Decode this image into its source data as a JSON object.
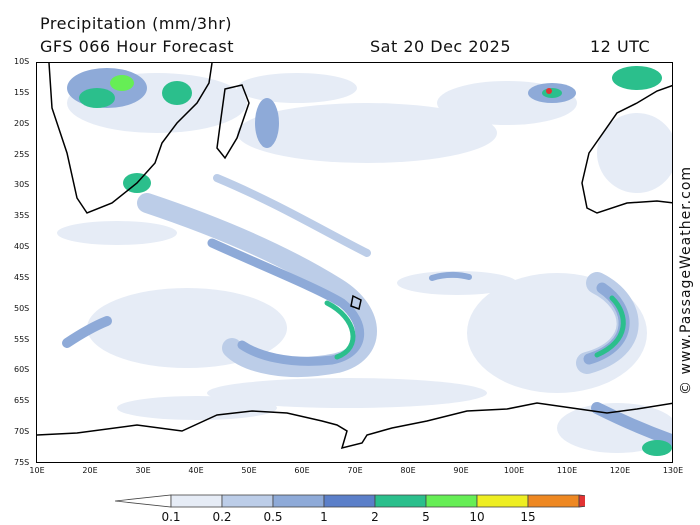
{
  "header": {
    "title": "Precipitation (mm/3hr)",
    "model": "GFS 066 Hour Forecast",
    "date": "Sat 20 Dec 2025",
    "time": "12 UTC"
  },
  "credit": "© www.PassageWeather.com",
  "map": {
    "lat_labels": [
      "10S",
      "15S",
      "20S",
      "25S",
      "30S",
      "35S",
      "40S",
      "45S",
      "50S",
      "55S",
      "60S",
      "65S",
      "70S",
      "75S"
    ],
    "lon_labels": [
      "10E",
      "20E",
      "30E",
      "40E",
      "50E",
      "60E",
      "70E",
      "80E",
      "90E",
      "100E",
      "110E",
      "120E",
      "130E"
    ],
    "colors": {
      "land_outline": "#000000",
      "band_0_1": "#e6ecf6",
      "band_0_2": "#bccde8",
      "band_0_5": "#8eaad8",
      "band_1": "#5b7fc9",
      "band_2": "#2bbf8c",
      "band_5": "#66ee55",
      "band_10": "#eeee22",
      "band_15": "#ee8822",
      "band_max": "#e23333"
    }
  },
  "legend": {
    "labels": [
      "0.1",
      "0.2",
      "0.5",
      "1",
      "2",
      "5",
      "10",
      "15"
    ],
    "colors": [
      "#ffffff",
      "#e6ecf6",
      "#bccde8",
      "#8eaad8",
      "#5b7fc9",
      "#2bbf8c",
      "#66ee55",
      "#eeee22",
      "#ee8822",
      "#e23333"
    ]
  }
}
